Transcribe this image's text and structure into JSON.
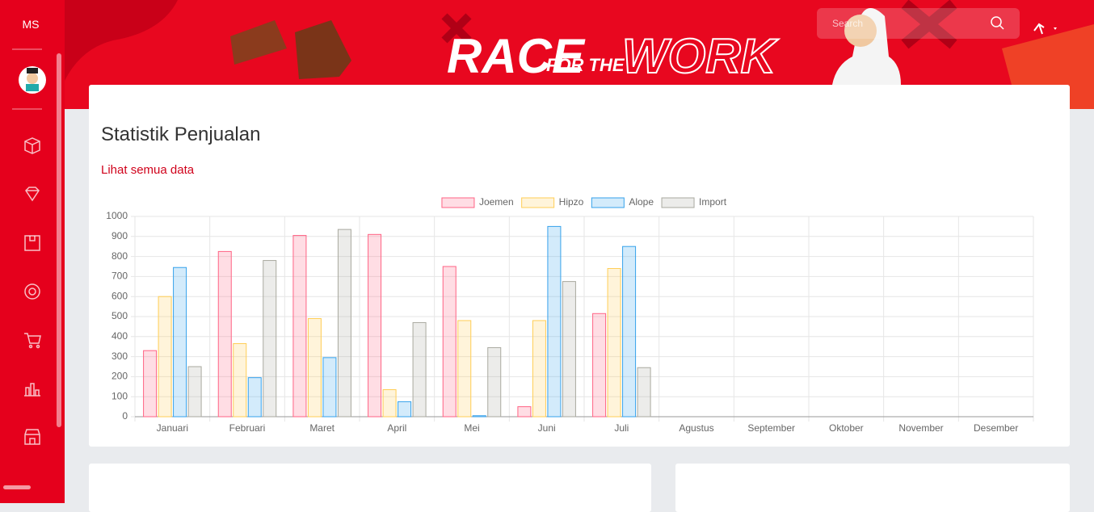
{
  "sidebar": {
    "brand": "MS"
  },
  "banner": {
    "race": "RACE",
    "for_the": "FOR THE",
    "work": "WORK"
  },
  "search": {
    "placeholder": "Search"
  },
  "card": {
    "title": "Statistik Penjualan",
    "link": "Lihat semua data"
  },
  "chart_data": {
    "type": "bar",
    "categories": [
      "Januari",
      "Februari",
      "Maret",
      "April",
      "Mei",
      "Juni",
      "Juli",
      "Agustus",
      "September",
      "Oktober",
      "November",
      "Desember"
    ],
    "series": [
      {
        "name": "Joemen",
        "color": "#ff6384",
        "values": [
          330,
          825,
          905,
          910,
          750,
          50,
          515,
          null,
          null,
          null,
          null,
          null
        ]
      },
      {
        "name": "Hipzo",
        "color": "#ffce56",
        "values": [
          600,
          365,
          490,
          135,
          480,
          480,
          740,
          null,
          null,
          null,
          null,
          null
        ]
      },
      {
        "name": "Alope",
        "color": "#36a2eb",
        "values": [
          745,
          195,
          295,
          75,
          5,
          950,
          850,
          null,
          null,
          null,
          null,
          null
        ]
      },
      {
        "name": "Import",
        "color": "#a9a99f",
        "values": [
          250,
          780,
          935,
          470,
          345,
          675,
          245,
          null,
          null,
          null,
          null,
          null
        ]
      }
    ],
    "ylim": [
      0,
      1000
    ],
    "yticks": [
      0,
      100,
      200,
      300,
      400,
      500,
      600,
      700,
      800,
      900,
      1000
    ],
    "grid": true,
    "legend": "top"
  }
}
